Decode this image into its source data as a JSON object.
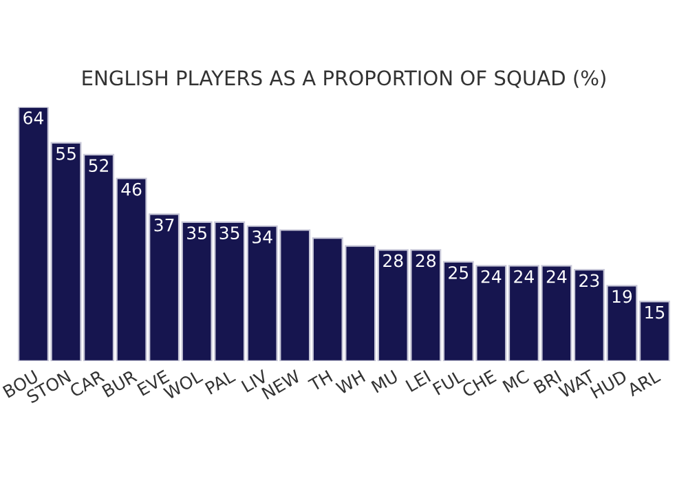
{
  "chart_data": {
    "type": "bar",
    "title": "ENGLISH PLAYERS AS A PROPORTION OF SQUAD (%)",
    "categories": [
      "BOU",
      "STON",
      "CAR",
      "BUR",
      "EVE",
      "WOL",
      "PAL",
      "LIV",
      "NEW",
      "TH",
      "WH",
      "MU",
      "LEI",
      "FUL",
      "CHE",
      "MC",
      "BRI",
      "WAT",
      "HUD",
      "ARL"
    ],
    "values": [
      64,
      55,
      52,
      46,
      37,
      35,
      35,
      34,
      33,
      31,
      29,
      28,
      28,
      25,
      24,
      24,
      24,
      23,
      19,
      15
    ],
    "value_labels": [
      "64",
      "55",
      "52",
      "46",
      "37",
      "35",
      "35",
      "34",
      null,
      null,
      null,
      "28",
      "28",
      "25",
      "24",
      "24",
      "24",
      "23",
      "19",
      "15"
    ],
    "color": "#16154f",
    "grid": false
  }
}
